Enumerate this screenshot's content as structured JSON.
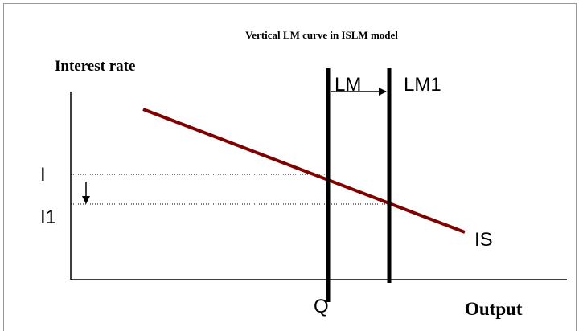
{
  "title": "Vertical LM curve in ISLM model",
  "axes": {
    "y_label": "Interest rate",
    "x_label": "Output"
  },
  "curves": {
    "lm": "LM",
    "lm1": "LM1",
    "is": "IS"
  },
  "levels": {
    "i": "I",
    "i1": "I1",
    "q": "Q"
  }
}
